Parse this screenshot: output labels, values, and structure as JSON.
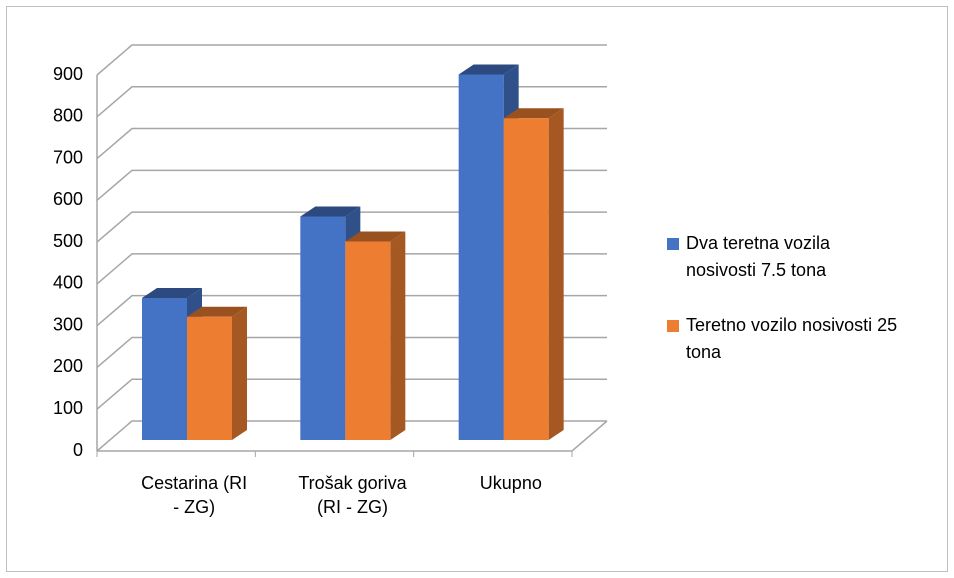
{
  "chart_data": {
    "type": "bar3d",
    "categories": [
      "Cestarina (RI - ZG)",
      "Trošak goriva (RI - ZG)",
      "Ukupno"
    ],
    "series": [
      {
        "name": "Dva teretna vozila nosivosti 7.5 tona",
        "color": "#4472c4",
        "values": [
          340,
          535,
          875
        ]
      },
      {
        "name": "Teretno vozilo nosivosti 25 tona",
        "color": "#ed7d31",
        "values": [
          295,
          475,
          770
        ]
      }
    ],
    "ylim": [
      0,
      900
    ],
    "yticks": [
      0,
      100,
      200,
      300,
      400,
      500,
      600,
      700,
      800,
      900
    ],
    "grid": true,
    "legend": "right"
  }
}
